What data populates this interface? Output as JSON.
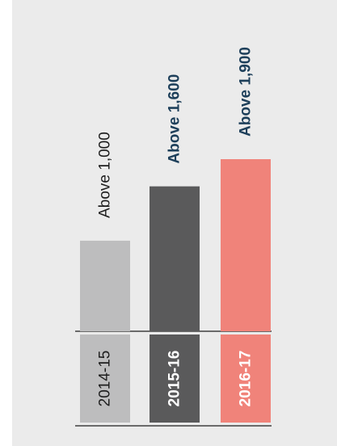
{
  "chart_data": {
    "type": "bar",
    "categories": [
      "2014-15",
      "2015-16",
      "2016-17"
    ],
    "values": [
      1000,
      1600,
      1900
    ],
    "value_labels": [
      "Above 1,000",
      "Above 1,600",
      "Above 1,900"
    ],
    "ylim": [
      0,
      1900
    ],
    "grid": false,
    "colors": {
      "bars": [
        "#bdbdbe",
        "#5a5a5b",
        "#f0837a"
      ],
      "category_label_text": [
        "#1e1e1e",
        "#ffffff",
        "#ffffff"
      ],
      "value_label_text": [
        "#1e1e1e",
        "#1d3f5a",
        "#1d3f5a"
      ],
      "value_label_weight": [
        "normal",
        "bold",
        "bold"
      ],
      "panel_background": "#ebebeb"
    }
  }
}
